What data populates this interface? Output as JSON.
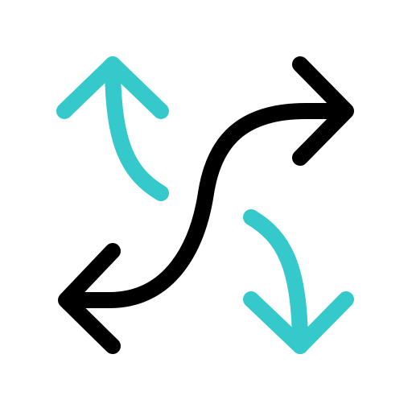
{
  "icon": {
    "name": "exchange-arrows-icon",
    "colors": {
      "primary": "#000000",
      "accent": "#35C9CB"
    },
    "parts": [
      "curved-two-way-arrow",
      "curved-arrow-up",
      "curved-arrow-down"
    ]
  }
}
